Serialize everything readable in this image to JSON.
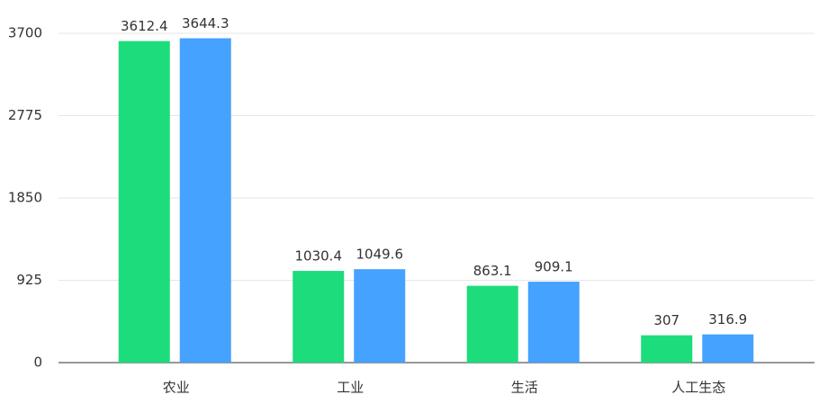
{
  "chart_data": {
    "type": "bar",
    "categories": [
      "农业",
      "工业",
      "生活",
      "人工生态"
    ],
    "series": [
      {
        "color": "#1cdc7c",
        "values": [
          3612.4,
          1030.4,
          863.1,
          307
        ]
      },
      {
        "color": "#45a2ff",
        "values": [
          3644.3,
          1049.6,
          909.1,
          316.9
        ]
      }
    ],
    "ylim": [
      0,
      3700
    ],
    "yticks": [
      0,
      925,
      1850,
      2775,
      3700
    ],
    "grid": true
  }
}
